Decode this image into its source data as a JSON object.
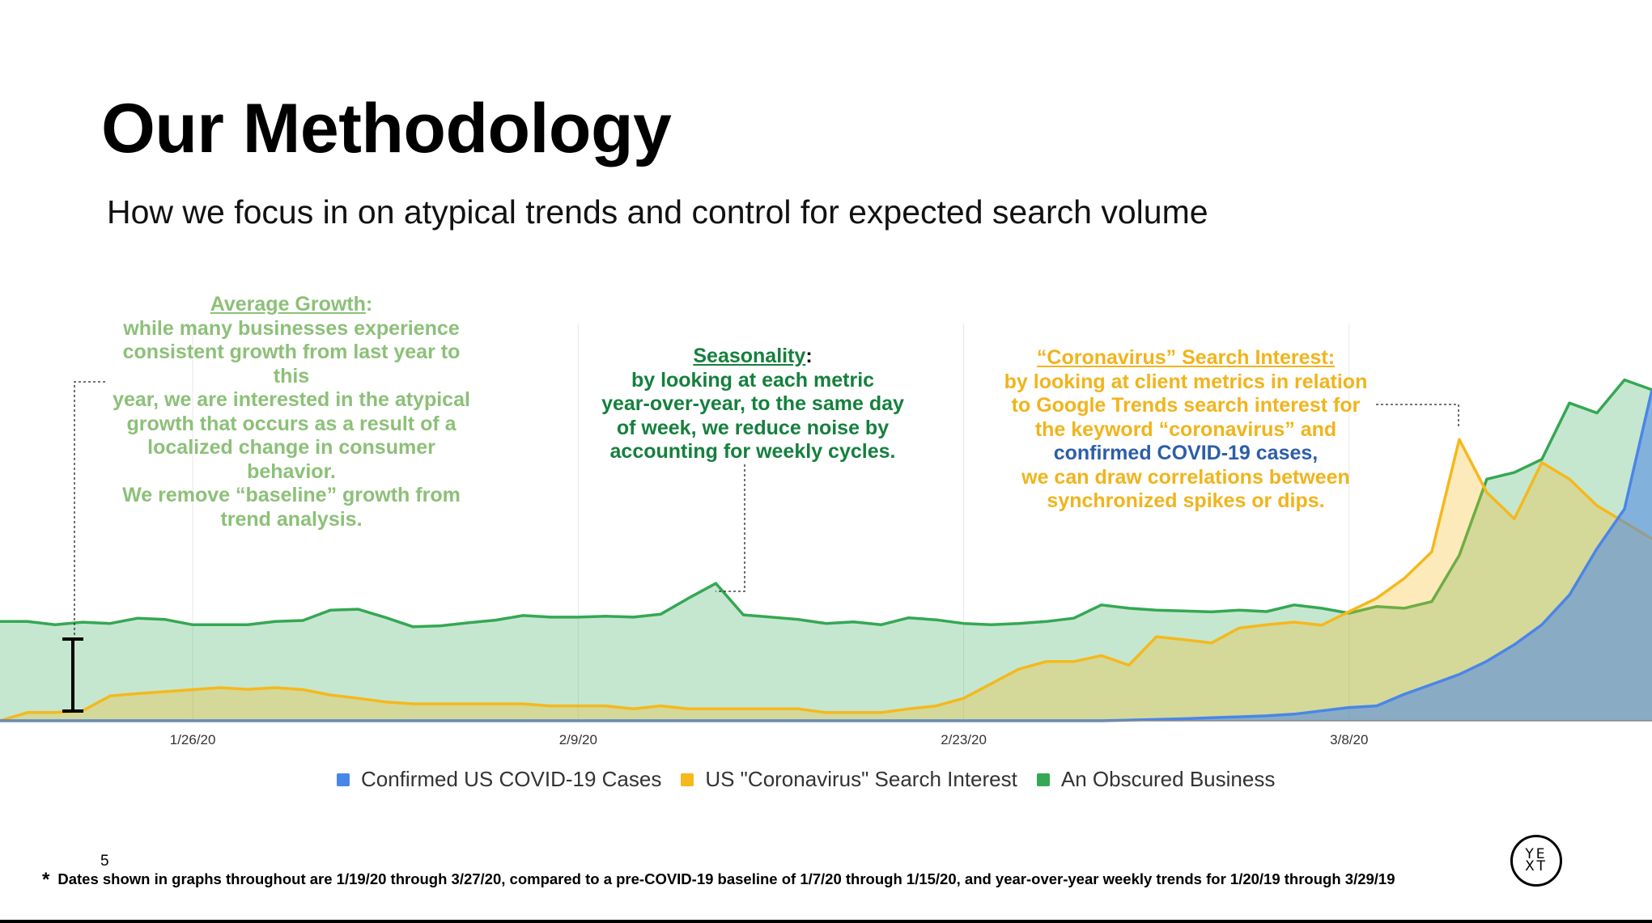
{
  "slide": {
    "title": "Our Methodology",
    "subtitle": "How we focus in on atypical trends and control for expected search volume",
    "page_number": "5",
    "footnote_marker": "*",
    "footnote": "Dates shown in graphs throughout are 1/19/20 through 3/27/20, compared to a pre-COVID-19 baseline of 1/7/20 through 1/15/20, and year-over-year weekly trends for 1/20/19 through 3/29/19",
    "logo_top": "YE",
    "logo_bottom": "XT"
  },
  "annotations": {
    "average_growth": {
      "heading": "Average Growth",
      "colon": ":",
      "lines": [
        "while many businesses experience",
        "consistent growth from last year to this",
        "year, we are interested in the atypical",
        "growth that occurs as a result of a",
        "localized change in consumer behavior.",
        "We remove “baseline” growth from",
        "trend analysis."
      ],
      "color": "#8cc078"
    },
    "seasonality": {
      "heading": "Seasonality",
      "colon": ":",
      "lines": [
        "by looking at each metric",
        "year-over-year, to the same day",
        "of week, we reduce noise by",
        "accounting for weekly cycles."
      ],
      "color": "#15803d"
    },
    "coronavirus": {
      "heading": "“Coronavirus” Search Interest:",
      "lines": [
        "by looking at client metrics in relation",
        "to Google Trends search interest for",
        "the keyword “coronavirus” and"
      ],
      "covid_line": "confirmed COVID-19 cases,",
      "lines_after": [
        "we can draw correlations between",
        "synchronized spikes or dips."
      ],
      "color": "#f0b41c",
      "covid_color": "#2c5ea8"
    }
  },
  "chart_data": {
    "type": "area",
    "x_ticks": [
      "1/26/20",
      "2/9/20",
      "2/23/20",
      "3/8/20"
    ],
    "x_tick_index": [
      7,
      21,
      35,
      49
    ],
    "ylim": [
      0,
      120
    ],
    "grid": "vertical",
    "legend_position": "bottom",
    "series": [
      {
        "name": "Confirmed US COVID-19 Cases",
        "color": "#4a86e8",
        "values": [
          0,
          0,
          0,
          0,
          0,
          0,
          0,
          0,
          0,
          0,
          0,
          0,
          0,
          0,
          0,
          0,
          0,
          0,
          0,
          0,
          0,
          0,
          0,
          0,
          0,
          0,
          0,
          0,
          0,
          0,
          0,
          0,
          0,
          0,
          0,
          0,
          0,
          0,
          0,
          0,
          0,
          0.2,
          0.4,
          0.6,
          0.9,
          1.2,
          1.5,
          2.0,
          3.0,
          4.0,
          4.5,
          8,
          11,
          14,
          18,
          23,
          29,
          38,
          52,
          64,
          100
        ]
      },
      {
        "name": "US \"Coronavirus\" Search Interest",
        "color": "#f5b81d",
        "values": [
          0,
          2.5,
          2.5,
          3,
          7.5,
          8.2,
          8.8,
          9.4,
          10,
          9.5,
          10,
          9.4,
          7.8,
          6.8,
          5.7,
          5.1,
          5.1,
          5.1,
          5.1,
          5.1,
          4.5,
          4.5,
          4.5,
          3.6,
          4.5,
          3.6,
          3.6,
          3.6,
          3.6,
          3.6,
          2.5,
          2.5,
          2.5,
          3.6,
          4.5,
          6.8,
          11.2,
          15.6,
          17.9,
          17.9,
          19.7,
          16.8,
          25.4,
          24.5,
          23.5,
          28,
          29,
          29.8,
          28.9,
          33,
          37,
          43,
          51,
          85,
          69,
          61,
          78,
          73,
          65,
          60,
          55
        ]
      },
      {
        "name": "An Obscured Business",
        "color": "#34a853",
        "values": [
          30,
          30,
          29,
          29.8,
          29.4,
          31,
          30.6,
          29,
          29,
          29,
          30,
          30.3,
          33.4,
          33.7,
          31.2,
          28.4,
          28.7,
          29.6,
          30.4,
          31.8,
          31.3,
          31.3,
          31.6,
          31.3,
          32.2,
          37,
          41.5,
          32,
          31.3,
          30.6,
          29.4,
          29.9,
          29,
          31.1,
          30.5,
          29.4,
          29,
          29.4,
          30,
          31,
          35,
          34,
          33.4,
          33.2,
          32.9,
          33.4,
          33,
          35,
          34,
          32.5,
          34.5,
          34,
          36,
          50,
          73,
          75,
          79,
          96,
          93,
          103,
          100
        ]
      }
    ]
  }
}
